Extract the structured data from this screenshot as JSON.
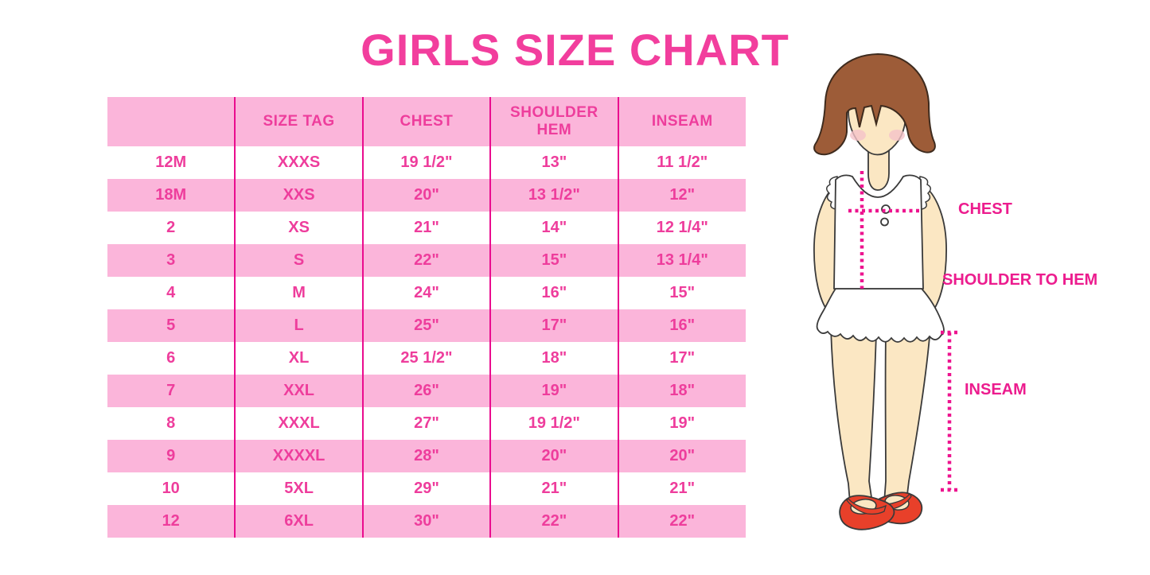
{
  "title": {
    "text": "GIRLS SIZE CHART"
  },
  "chart_data": {
    "type": "table",
    "title": "GIRLS SIZE CHART",
    "columns": [
      "",
      "SIZE TAG",
      "CHEST",
      "SHOULDER HEM",
      "INSEAM"
    ],
    "rows": [
      [
        "12M",
        "XXXS",
        "19 1/2\"",
        "13\"",
        "11 1/2\""
      ],
      [
        "18M",
        "XXS",
        "20\"",
        "13 1/2\"",
        "12\""
      ],
      [
        "2",
        "XS",
        "21\"",
        "14\"",
        "12 1/4\""
      ],
      [
        "3",
        "S",
        "22\"",
        "15\"",
        "13 1/4\""
      ],
      [
        "4",
        "M",
        "24\"",
        "16\"",
        "15\""
      ],
      [
        "5",
        "L",
        "25\"",
        "17\"",
        "16\""
      ],
      [
        "6",
        "XL",
        "25 1/2\"",
        "18\"",
        "17\""
      ],
      [
        "7",
        "XXL",
        "26\"",
        "19\"",
        "18\""
      ],
      [
        "8",
        "XXXL",
        "27\"",
        "19 1/2\"",
        "19\""
      ],
      [
        "9",
        "XXXXL",
        "28\"",
        "20\"",
        "20\""
      ],
      [
        "10",
        "5XL",
        "29\"",
        "21\"",
        "21\""
      ],
      [
        "12",
        "6XL",
        "30\"",
        "22\"",
        "22\""
      ]
    ],
    "layout": {
      "striped": true,
      "first_body_row": "white",
      "grid": "vertical-dividers-only",
      "legend": "none"
    }
  },
  "figure": {
    "labels": {
      "chest": "CHEST",
      "shoulder_to_hem": "SHOULDER TO HEM",
      "inseam": "INSEAM"
    }
  },
  "colors": {
    "pink_bg": "#FBB5DA",
    "divider": "#EA0C8E",
    "text_pink": "#EE3D9C",
    "title_pink": "#F23E9D",
    "label_pink": "#EC1C8E",
    "measure": "#ED148F",
    "hair": "#9D5C38",
    "skin": "#FBE7C3",
    "blush": "#F5C3C9",
    "shoe": "#E8402A",
    "outline": "#3A3A3A"
  }
}
